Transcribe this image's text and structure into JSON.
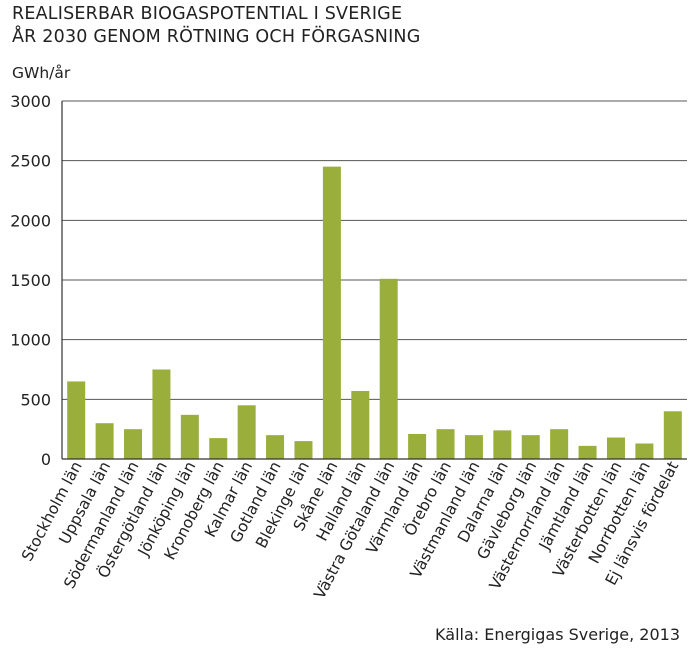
{
  "chart_data": {
    "type": "bar",
    "title": "REALISERBAR BIOGASPOTENTIAL I SVERIGE",
    "subtitle": "ÅR 2030 GENOM RÖTNING OCH FÖRGASNING",
    "ylabel": "GWh/år",
    "xlabel": "",
    "ylim": [
      0,
      3000
    ],
    "yticks": [
      0,
      500,
      1000,
      1500,
      2000,
      2500,
      3000
    ],
    "grid": true,
    "bar_color": "#9aae3c",
    "categories": [
      "Stockholm län",
      "Uppsala län",
      "Södermanland län",
      "Östergötland län",
      "Jönköping län",
      "Kronoberg län",
      "Kalmar län",
      "Gotland län",
      "Blekinge län",
      "Skåne län",
      "Halland län",
      "Västra Götaland län",
      "Värmland län",
      "Örebro län",
      "Västmanland län",
      "Dalarna län",
      "Gävleborg län",
      "Västernorrland län",
      "Jämtland län",
      "Västerbotten län",
      "Norrbotten län",
      "Ej länsvis fördelat"
    ],
    "values": [
      650,
      300,
      250,
      750,
      370,
      175,
      450,
      200,
      150,
      2450,
      570,
      1510,
      210,
      250,
      200,
      240,
      200,
      250,
      110,
      180,
      130,
      400
    ],
    "source": "Källa: Energigas Sverige, 2013"
  }
}
